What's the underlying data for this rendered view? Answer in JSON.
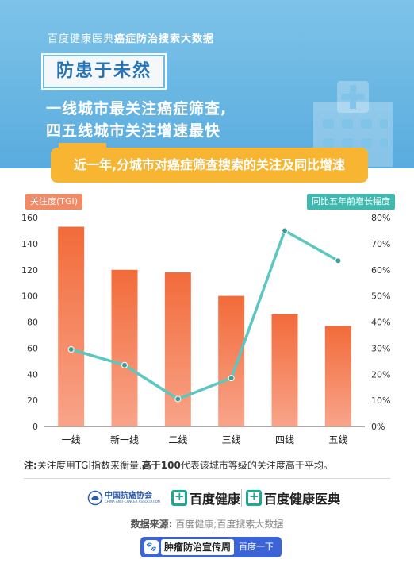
{
  "header": {
    "top_line_light": "百度健康医典",
    "top_line_bold": "癌症防治搜索大数据",
    "badge": "防患于未然",
    "headline_1": "一线城市最关注癌症筛查,",
    "headline_2": "四五线城市关注增速最快",
    "subtitle": "近一年,分城市对癌症筛查搜索的关注及同比增速"
  },
  "colors": {
    "header_bg": "#6db8e4",
    "bar": "#f47c4e",
    "line": "#5bc7c0",
    "left_tag": "#f28a66",
    "right_tag": "#3fb9b0",
    "subtitle_bg": "#f7b531"
  },
  "chart_data": {
    "type": "bar",
    "categories": [
      "一线",
      "新一线",
      "二线",
      "三线",
      "四线",
      "五线"
    ],
    "series": [
      {
        "name": "关注度(TGI)",
        "type": "bar",
        "axis": "left",
        "values": [
          153,
          120,
          118,
          100,
          86,
          77
        ]
      },
      {
        "name": "同比五年前增长幅度",
        "type": "line",
        "axis": "right",
        "values": [
          29.5,
          23.5,
          10.5,
          18.5,
          75,
          63.5
        ]
      }
    ],
    "left_axis": {
      "label": "关注度(TGI)",
      "ylim": [
        0,
        160
      ],
      "ticks": [
        "0",
        "20",
        "40",
        "60",
        "80",
        "100",
        "120",
        "140",
        "160"
      ]
    },
    "right_axis": {
      "label": "同比五年前增长幅度",
      "ylim": [
        0,
        80
      ],
      "ticks": [
        "0%",
        "10%",
        "20%",
        "30%",
        "40%",
        "50%",
        "60%",
        "70%",
        "80%"
      ]
    },
    "grid": false,
    "legend": "none"
  },
  "note": {
    "prefix": "注:",
    "text1": "关注度用TGI指数来衡量,",
    "bold": "高于100",
    "text2": "代表该城市等级的关注度高于平均。"
  },
  "logos": {
    "assoc_name": "中国抗癌协会",
    "assoc_sub": "CHINA ANTI-CANCER ASSOCIATION",
    "brand_1": "百度健康",
    "brand_2": "百度健康医典"
  },
  "source": {
    "label": "数据来源:",
    "text": "百度健康;百度搜索大数据"
  },
  "footer": {
    "campaign": "肿瘤防治宣传周",
    "button": "百度一下"
  }
}
